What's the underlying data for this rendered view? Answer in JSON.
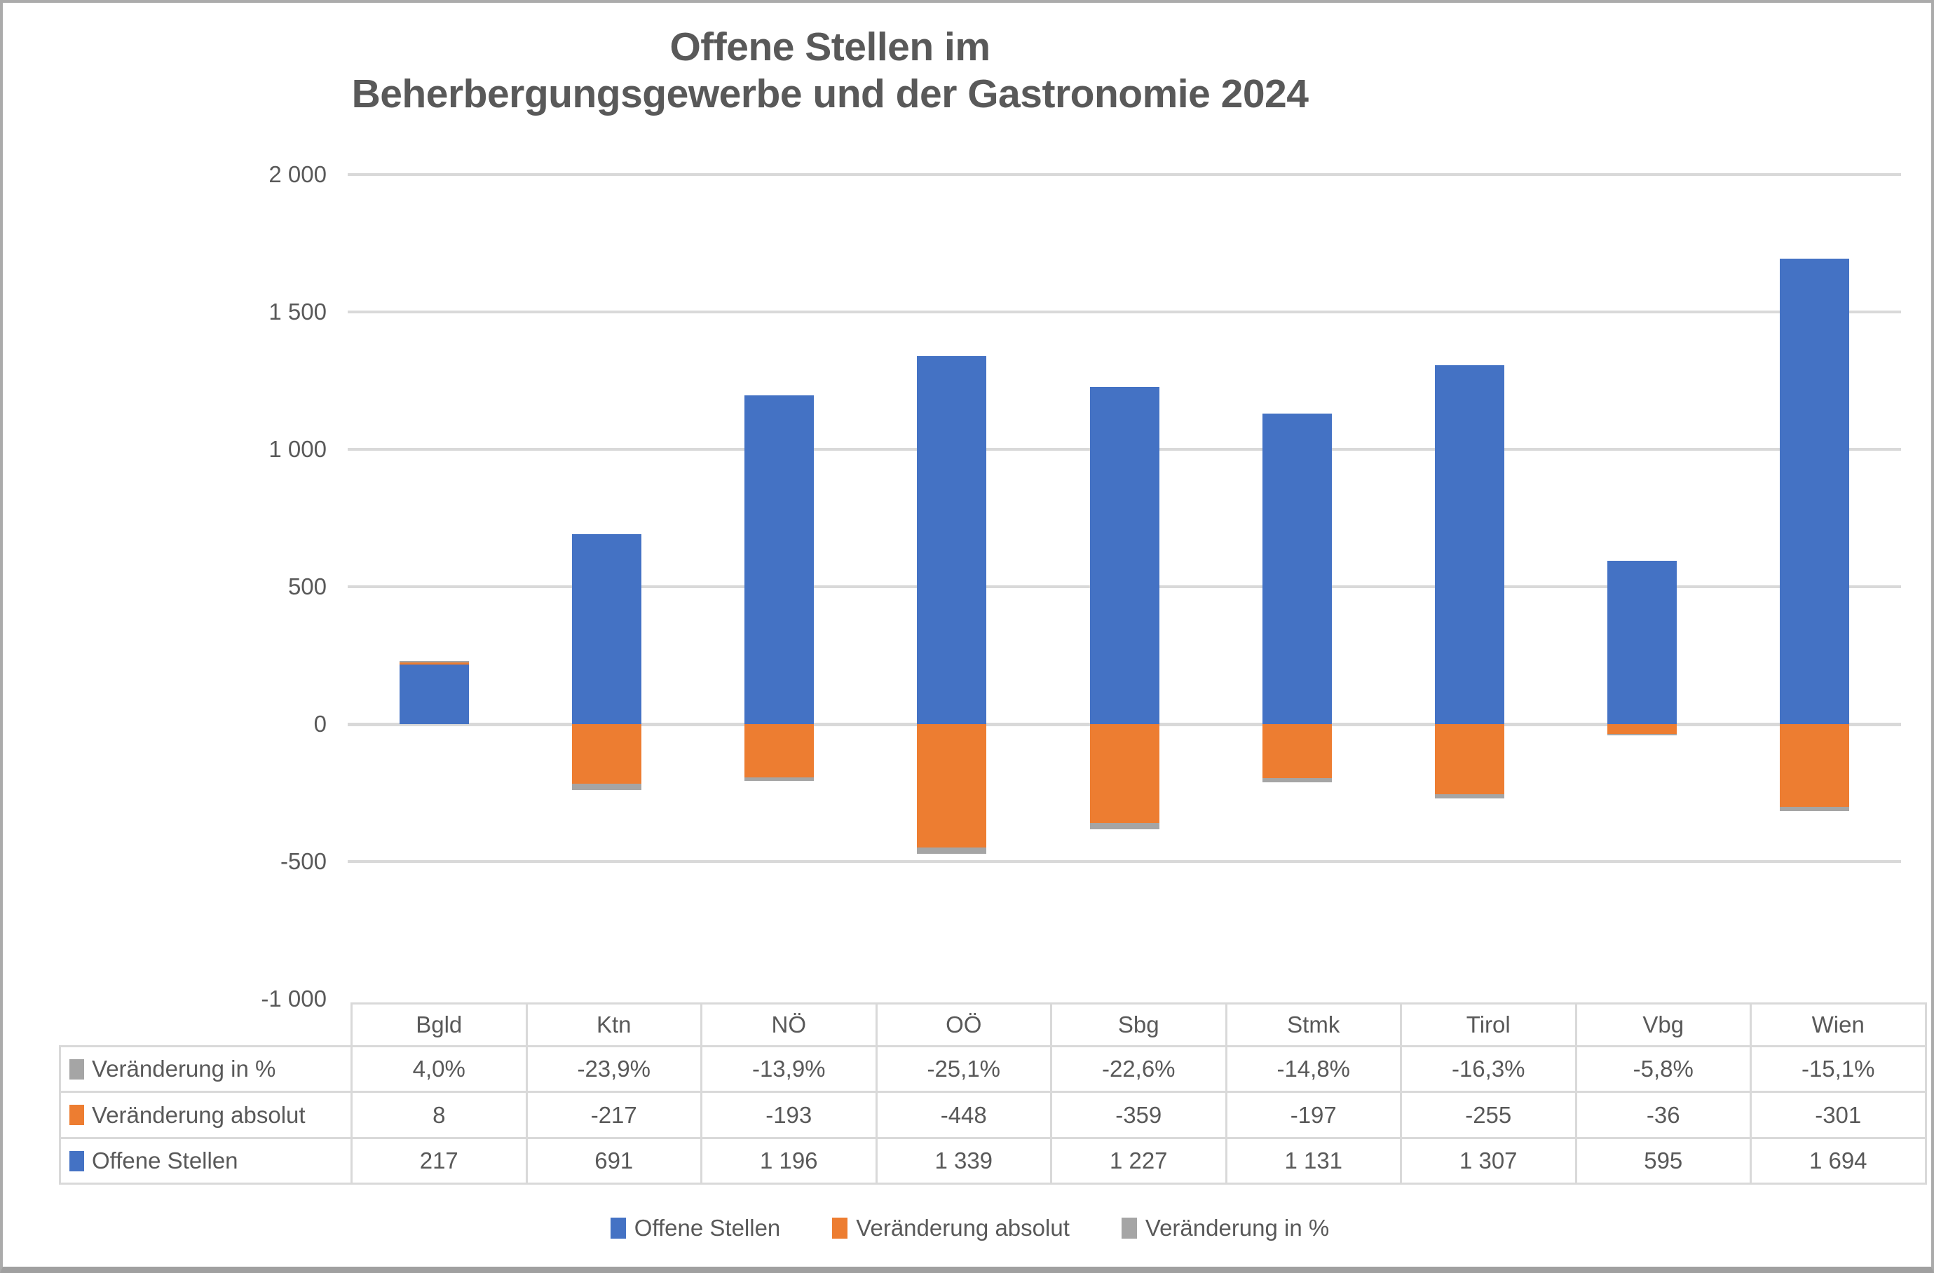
{
  "title": {
    "line1": "Offene Stellen im",
    "line2": "Beherbergungsgewerbe und der Gastronomie 2024"
  },
  "chart_data": {
    "type": "bar",
    "stacked": true,
    "title": "Offene Stellen im Beherbergungsgewerbe und der Gastronomie 2024",
    "categories": [
      "Bgld",
      "Ktn",
      "NÖ",
      "OÖ",
      "Sbg",
      "Stmk",
      "Tirol",
      "Vbg",
      "Wien"
    ],
    "series": [
      {
        "key": "offene-stellen",
        "name": "Offene Stellen",
        "color": "#4472C4",
        "values": [
          217,
          691,
          1196,
          1339,
          1227,
          1131,
          1307,
          595,
          1694
        ]
      },
      {
        "key": "veraenderung-absolut",
        "name": "Veränderung absolut",
        "color": "#ED7D31",
        "values": [
          8,
          -217,
          -193,
          -448,
          -359,
          -197,
          -255,
          -36,
          -301
        ]
      },
      {
        "key": "veraenderung-in-prozent",
        "name": "Veränderung in %",
        "color": "#A5A5A5",
        "values": [
          4.0,
          -23.9,
          -13.9,
          -25.1,
          -22.6,
          -14.8,
          -16.3,
          -5.8,
          -15.1
        ]
      }
    ],
    "ylim": [
      -1000,
      2000
    ],
    "yticks": [
      {
        "value": 2000,
        "label": "2 000"
      },
      {
        "value": 1500,
        "label": "1 500"
      },
      {
        "value": 1000,
        "label": "1 000"
      },
      {
        "value": 500,
        "label": "500"
      },
      {
        "value": 0,
        "label": "0"
      },
      {
        "value": -500,
        "label": "-500"
      },
      {
        "value": -1000,
        "label": "-1 000"
      }
    ],
    "grid": true,
    "legend_position": "bottom"
  },
  "table": {
    "columns": [
      "Bgld",
      "Ktn",
      "NÖ",
      "OÖ",
      "Sbg",
      "Stmk",
      "Tirol",
      "Vbg",
      "Wien"
    ],
    "rows": [
      {
        "key": "veraenderung-in-prozent",
        "label": "Veränderung in %",
        "swatch_color": "#A5A5A5",
        "values": [
          "4,0%",
          "-23,9%",
          "-13,9%",
          "-25,1%",
          "-22,6%",
          "-14,8%",
          "-16,3%",
          "-5,8%",
          "-15,1%"
        ]
      },
      {
        "key": "veraenderung-absolut",
        "label": "Veränderung absolut",
        "swatch_color": "#ED7D31",
        "values": [
          "8",
          "-217",
          "-193",
          "-448",
          "-359",
          "-197",
          "-255",
          "-36",
          "-301"
        ]
      },
      {
        "key": "offene-stellen",
        "label": "Offene Stellen",
        "swatch_color": "#4472C4",
        "values": [
          "217",
          "691",
          "1 196",
          "1 339",
          "1 227",
          "1 131",
          "1 307",
          "595",
          "1 694"
        ]
      }
    ]
  },
  "legend": {
    "items": [
      {
        "key": "offene-stellen",
        "label": "Offene Stellen",
        "color": "#4472C4"
      },
      {
        "key": "veraenderung-absolut",
        "label": "Veränderung absolut",
        "color": "#ED7D31"
      },
      {
        "key": "veraenderung-in-prozent",
        "label": "Veränderung in %",
        "color": "#A5A5A5"
      }
    ]
  }
}
